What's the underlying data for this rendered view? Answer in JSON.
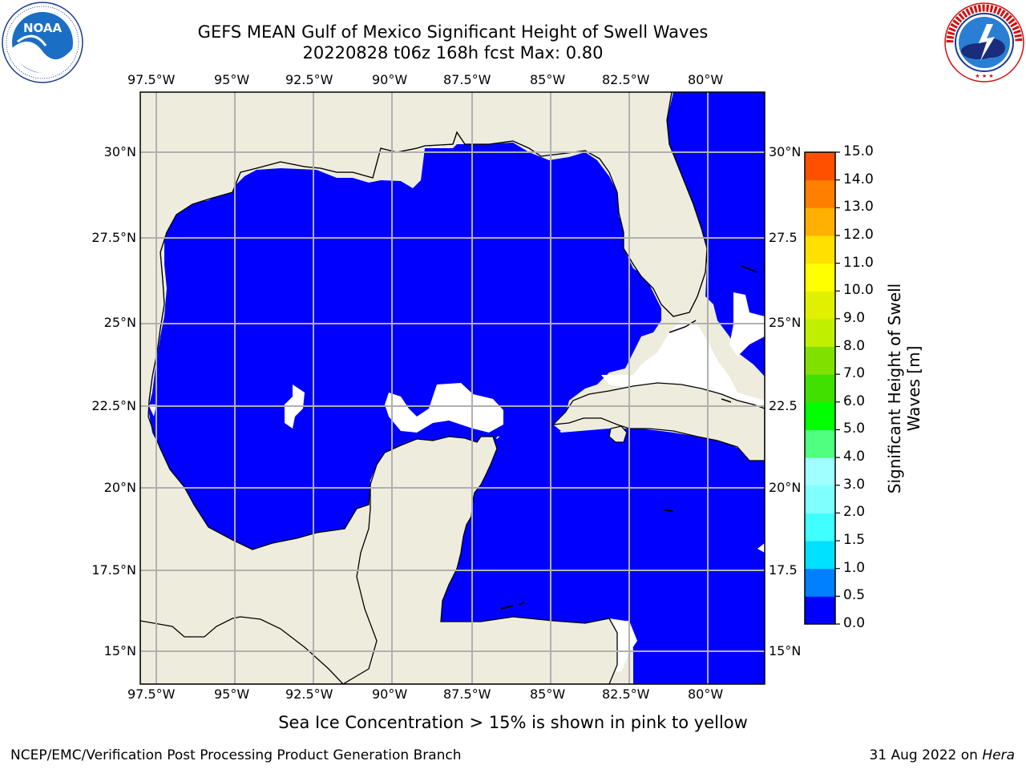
{
  "title_line1": "GEFS MEAN Gulf of Mexico Significant Height of Swell Waves",
  "title_line2": "20220828 t06z 168h fcst   Max: 0.80",
  "logos": {
    "left": {
      "name": "NOAA",
      "icon": "noaa-logo",
      "ring_text": "NATIONAL OCEANIC AND ATMOSPHERIC ADMINISTRATION · U.S. DEPARTMENT OF COMMERCE"
    },
    "right": {
      "name": "National Weather Service",
      "icon": "nws-logo",
      "ring_text": "NATIONAL WEATHER SERVICE"
    }
  },
  "map": {
    "lon_labels": [
      "97.5°W",
      "95°W",
      "92.5°W",
      "90°W",
      "87.5°W",
      "85°W",
      "82.5°W",
      "80°W"
    ],
    "lat_labels_left": [
      "30°N",
      "27.5°N",
      "25°N",
      "22.5°N",
      "20°N",
      "17.5°N",
      "15°N"
    ],
    "lat_labels_right": [
      "30°N",
      "27.5",
      "25°N",
      "22.5",
      "20°N",
      "17.5",
      "15°N"
    ],
    "colors": {
      "land": "#eeeddd",
      "water_low": "#0000ff",
      "water_mid": "#0080ff",
      "grid": "#b0b0b0",
      "coast": "#000000"
    }
  },
  "colorbar": {
    "title_line1": "Significant Height of Swell",
    "title_line2": "Waves [m]",
    "ticks": [
      "0.0",
      "0.5",
      "1.0",
      "1.5",
      "2.0",
      "3.0",
      "4.0",
      "5.0",
      "6.0",
      "7.0",
      "8.0",
      "9.0",
      "10.0",
      "11.0",
      "12.0",
      "13.0",
      "14.0",
      "15.0"
    ],
    "colors": [
      "#0000ff",
      "#0080ff",
      "#00e0ff",
      "#40ffff",
      "#80ffff",
      "#a0ffff",
      "#50ff80",
      "#00ff00",
      "#40e000",
      "#80e000",
      "#c0f000",
      "#e0f000",
      "#ffff00",
      "#ffe000",
      "#ffb000",
      "#ff8000",
      "#ff5000",
      "#ff2000",
      "#ff0000"
    ]
  },
  "note": "Sea Ice Concentration > 15% is shown in pink to yellow",
  "credit": "NCEP/EMC/Verification Post Processing Product Generation Branch",
  "date": "31 Aug 2022 on",
  "host": "Hera"
}
